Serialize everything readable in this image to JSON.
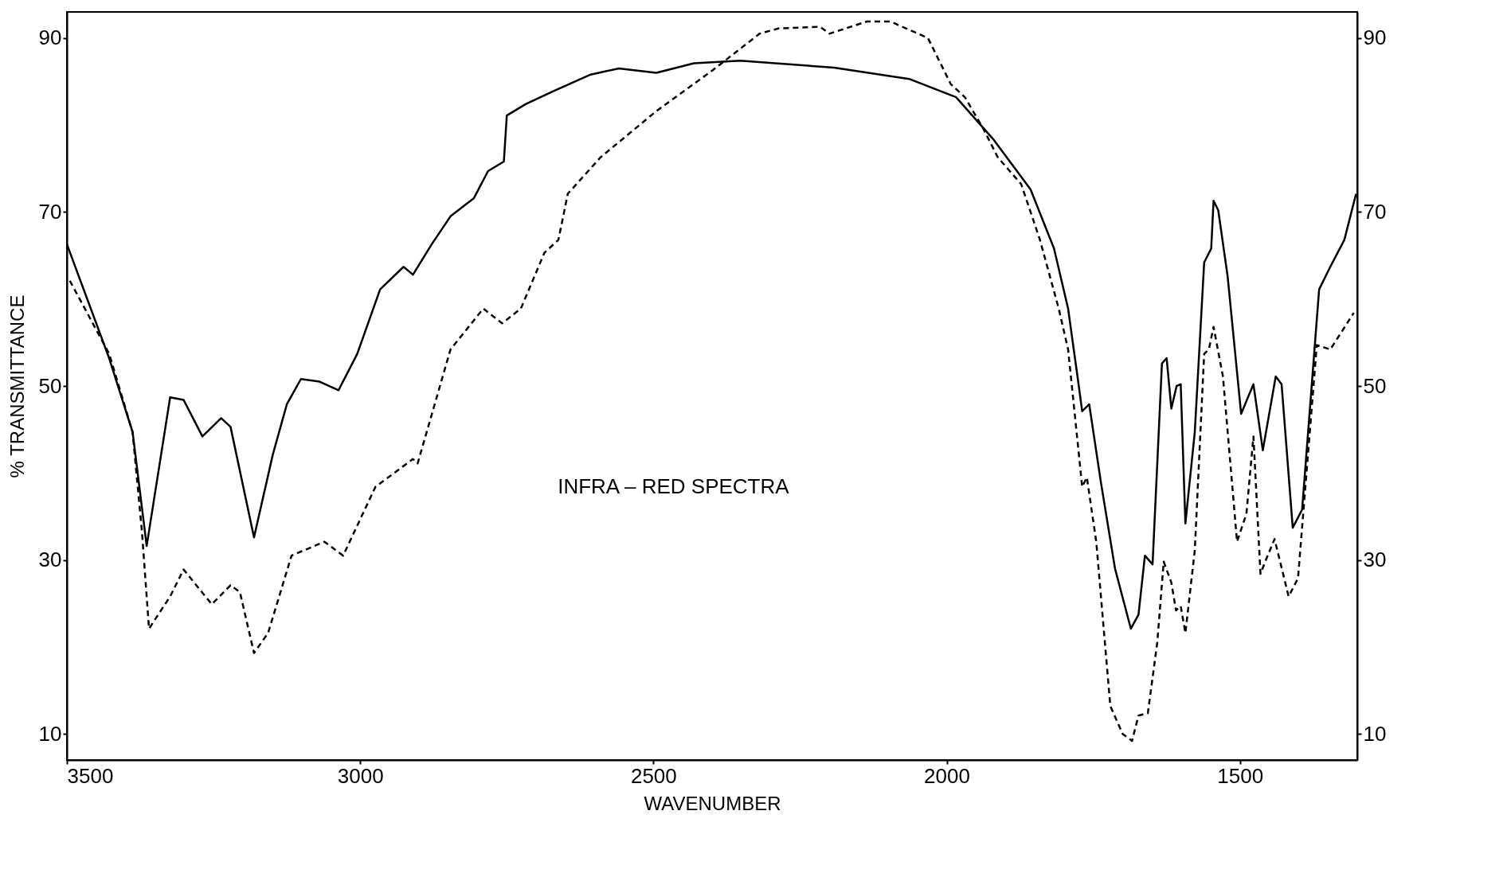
{
  "chart_data": {
    "type": "line",
    "xlabel": "WAVENUMBER",
    "ylabel": "% TRANSMITTANCE",
    "annotations": [
      "INFRA – RED    SPECTRA"
    ],
    "xlim": [
      3500,
      1300
    ],
    "xticks": [
      3500,
      3000,
      2500,
      2000,
      1500
    ],
    "ylim": [
      7,
      93
    ],
    "yticks": [
      10,
      30,
      50,
      70,
      90
    ],
    "y2lim": [
      7,
      93
    ],
    "y2ticks": [
      10,
      30,
      50,
      70,
      90
    ],
    "grid": false,
    "marker": "none",
    "series": [
      {
        "color": "#000000",
        "line_style": "solid",
        "x": [
          3500,
          3428,
          3388,
          3364,
          3324,
          3301,
          3269,
          3237,
          3221,
          3181,
          3149,
          3125,
          3101,
          3069,
          3037,
          3005,
          2966,
          2926,
          2910,
          2878,
          2846,
          2806,
          2782,
          2755,
          2750,
          2718,
          2670,
          2607,
          2559,
          2495,
          2431,
          2352,
          2192,
          2064,
          1984,
          1921,
          1857,
          1817,
          1793,
          1777,
          1769,
          1757,
          1737,
          1713,
          1686,
          1673,
          1662,
          1649,
          1633,
          1625,
          1617,
          1608,
          1601,
          1593,
          1577,
          1561,
          1549,
          1545,
          1537,
          1521,
          1498,
          1477,
          1461,
          1439,
          1429,
          1410,
          1394,
          1365,
          1346,
          1322,
          1302
        ],
        "values": [
          66.3,
          53.2,
          44.7,
          31.6,
          48.7,
          48.4,
          44.2,
          46.3,
          45.3,
          32.6,
          42.1,
          47.9,
          50.8,
          50.5,
          49.5,
          53.7,
          61.1,
          63.7,
          62.8,
          66.3,
          69.5,
          71.6,
          74.7,
          75.8,
          81.1,
          82.4,
          83.9,
          85.8,
          86.5,
          86.0,
          87.1,
          87.4,
          86.6,
          85.3,
          83.2,
          78.4,
          72.6,
          65.8,
          58.9,
          51.1,
          47.1,
          47.9,
          38.9,
          29.0,
          22.1,
          23.7,
          30.5,
          29.5,
          52.6,
          53.2,
          47.4,
          50.0,
          50.2,
          34.2,
          44.7,
          64.2,
          65.8,
          71.3,
          70.2,
          62.6,
          46.8,
          50.2,
          42.6,
          51.1,
          50.2,
          33.7,
          35.8,
          61.1,
          63.7,
          66.8,
          72.1
        ]
      },
      {
        "color": "#000000",
        "line_style": "dashed",
        "x": [
          3495,
          3428,
          3388,
          3372,
          3360,
          3324,
          3301,
          3253,
          3221,
          3205,
          3181,
          3157,
          3117,
          3061,
          3029,
          2974,
          2910,
          2902,
          2846,
          2790,
          2758,
          2726,
          2686,
          2662,
          2646,
          2590,
          2495,
          2399,
          2319,
          2287,
          2216,
          2200,
          2136,
          2096,
          2032,
          1993,
          1969,
          1937,
          1913,
          1873,
          1841,
          1809,
          1793,
          1777,
          1769,
          1761,
          1745,
          1721,
          1700,
          1684,
          1673,
          1657,
          1641,
          1630,
          1617,
          1609,
          1601,
          1593,
          1577,
          1561,
          1553,
          1545,
          1529,
          1505,
          1489,
          1477,
          1465,
          1457,
          1441,
          1417,
          1401,
          1369,
          1346,
          1306
        ],
        "values": [
          62.1,
          53.7,
          44.7,
          33.2,
          22.1,
          25.8,
          28.9,
          24.9,
          27.1,
          26.3,
          19.3,
          21.6,
          30.5,
          32.1,
          30.5,
          38.4,
          41.6,
          41.1,
          54.2,
          58.9,
          57.2,
          58.9,
          65.3,
          66.8,
          72.1,
          76.3,
          81.6,
          86.3,
          90.5,
          91.1,
          91.3,
          90.5,
          91.9,
          91.9,
          90.0,
          84.7,
          83.2,
          79.5,
          76.3,
          73.2,
          66.8,
          58.9,
          54.2,
          43.7,
          38.4,
          39.5,
          32.1,
          13.2,
          10.0,
          9.2,
          12.1,
          12.4,
          20.5,
          29.8,
          27.4,
          24.2,
          24.7,
          21.6,
          31.1,
          53.7,
          54.2,
          56.8,
          51.1,
          32.1,
          35.3,
          44.2,
          28.4,
          29.8,
          32.4,
          25.8,
          27.9,
          54.7,
          54.2,
          58.4
        ]
      }
    ]
  }
}
